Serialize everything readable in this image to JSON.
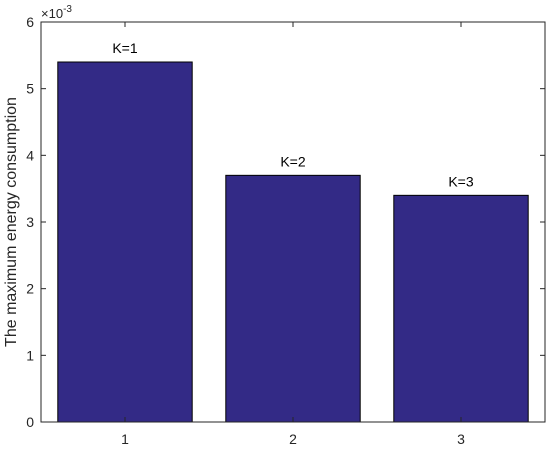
{
  "chart_data": {
    "type": "bar",
    "categories": [
      "1",
      "2",
      "3"
    ],
    "values": [
      0.0054,
      0.0037,
      0.0034
    ],
    "data_labels": [
      "K=1",
      "K=2",
      "K=3"
    ],
    "title": "",
    "xlabel": "",
    "ylabel": "The maximum energy consumption",
    "ylim": [
      0,
      0.006
    ],
    "y_ticks": [
      "0",
      "1",
      "2",
      "3",
      "4",
      "5",
      "6"
    ],
    "y_scale_base": "×10",
    "y_scale_exponent": "-3",
    "grid": false,
    "box": true,
    "bar_color": "#332a86",
    "bar_edge_color": "#000000"
  }
}
